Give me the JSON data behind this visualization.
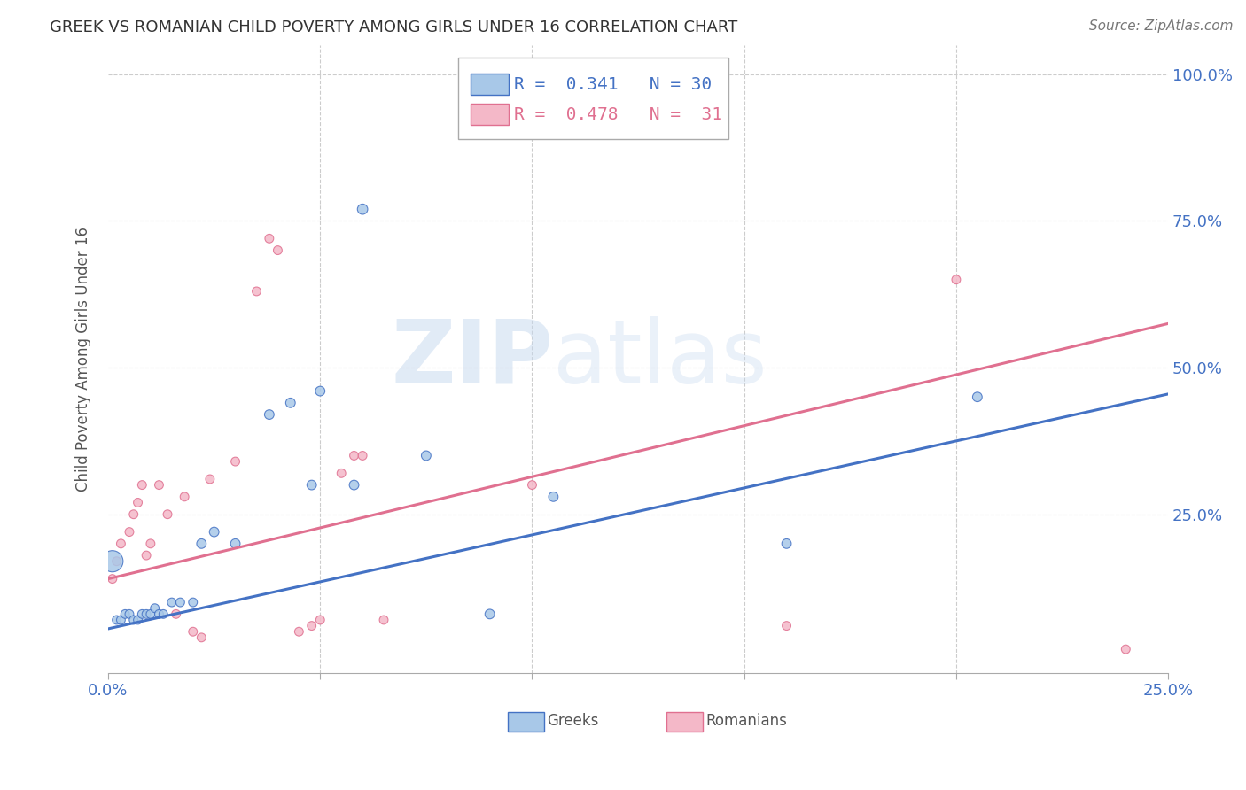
{
  "title": "GREEK VS ROMANIAN CHILD POVERTY AMONG GIRLS UNDER 16 CORRELATION CHART",
  "source": "Source: ZipAtlas.com",
  "ylabel": "Child Poverty Among Girls Under 16",
  "xlim": [
    0,
    0.25
  ],
  "ylim": [
    -0.02,
    1.05
  ],
  "watermark_zip": "ZIP",
  "watermark_atlas": "atlas",
  "legend": {
    "greek_R": "0.341",
    "greek_N": "30",
    "romanian_R": "0.478",
    "romanian_N": "31"
  },
  "greek_fill": "#A8C8E8",
  "greek_edge": "#4472C4",
  "romanian_fill": "#F4B8C8",
  "romanian_edge": "#E07090",
  "greek_line_color": "#4472C4",
  "romanian_line_color": "#E07090",
  "greek_line": {
    "x0": 0.0,
    "y0": 0.055,
    "x1": 0.25,
    "y1": 0.455
  },
  "romanian_line": {
    "x0": 0.0,
    "y0": 0.14,
    "x1": 0.25,
    "y1": 0.575
  },
  "greek_scatter": {
    "x": [
      0.001,
      0.002,
      0.003,
      0.004,
      0.005,
      0.006,
      0.007,
      0.008,
      0.009,
      0.01,
      0.011,
      0.012,
      0.013,
      0.015,
      0.017,
      0.02,
      0.022,
      0.025,
      0.03,
      0.038,
      0.043,
      0.048,
      0.05,
      0.058,
      0.06,
      0.075,
      0.09,
      0.105,
      0.16,
      0.205
    ],
    "y": [
      0.17,
      0.07,
      0.07,
      0.08,
      0.08,
      0.07,
      0.07,
      0.08,
      0.08,
      0.08,
      0.09,
      0.08,
      0.08,
      0.1,
      0.1,
      0.1,
      0.2,
      0.22,
      0.2,
      0.42,
      0.44,
      0.3,
      0.46,
      0.3,
      0.77,
      0.35,
      0.08,
      0.28,
      0.2,
      0.45
    ],
    "sizes": [
      300,
      50,
      50,
      50,
      50,
      50,
      50,
      50,
      50,
      50,
      50,
      50,
      50,
      50,
      50,
      50,
      60,
      60,
      60,
      60,
      60,
      60,
      60,
      60,
      70,
      60,
      60,
      60,
      60,
      60
    ]
  },
  "romanian_scatter": {
    "x": [
      0.001,
      0.002,
      0.003,
      0.005,
      0.006,
      0.007,
      0.008,
      0.009,
      0.01,
      0.012,
      0.014,
      0.016,
      0.018,
      0.02,
      0.022,
      0.024,
      0.03,
      0.035,
      0.038,
      0.04,
      0.045,
      0.048,
      0.05,
      0.055,
      0.058,
      0.06,
      0.065,
      0.1,
      0.16,
      0.2,
      0.24
    ],
    "y": [
      0.14,
      0.17,
      0.2,
      0.22,
      0.25,
      0.27,
      0.3,
      0.18,
      0.2,
      0.3,
      0.25,
      0.08,
      0.28,
      0.05,
      0.04,
      0.31,
      0.34,
      0.63,
      0.72,
      0.7,
      0.05,
      0.06,
      0.07,
      0.32,
      0.35,
      0.35,
      0.07,
      0.3,
      0.06,
      0.65,
      0.02
    ],
    "sizes": [
      50,
      50,
      50,
      50,
      50,
      50,
      50,
      50,
      50,
      50,
      50,
      50,
      50,
      50,
      50,
      50,
      50,
      50,
      50,
      50,
      50,
      50,
      50,
      50,
      50,
      50,
      50,
      50,
      50,
      50,
      50
    ]
  }
}
